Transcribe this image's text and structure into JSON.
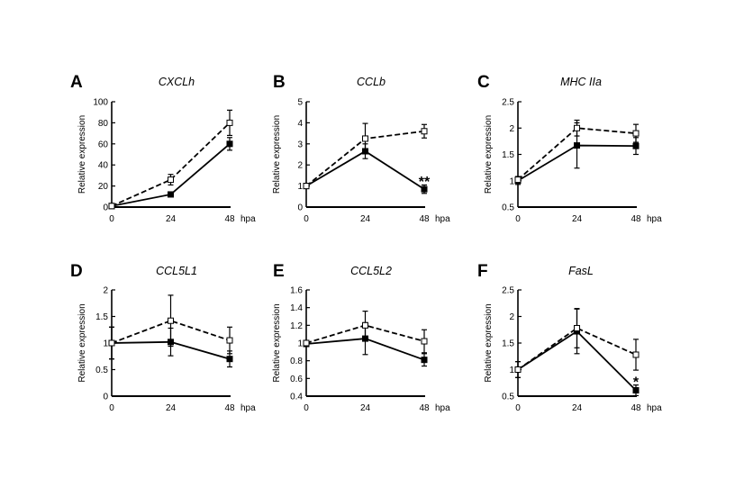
{
  "figure": {
    "background": "#ffffff",
    "ink_color": "#000000"
  },
  "chart_data": [
    {
      "type": "line",
      "panel": "A",
      "title": "CXCLh",
      "xlabel": "hpa",
      "ylabel": "Relative expression",
      "x": [
        0,
        24,
        48
      ],
      "x_tick_labels": [
        "0",
        "24",
        "48"
      ],
      "ylim": [
        0,
        100
      ],
      "y_ticks": [
        0,
        20,
        40,
        60,
        80,
        100
      ],
      "y_tick_labels": [
        "0",
        "20",
        "40",
        "60",
        "80",
        "100"
      ],
      "grid": false,
      "series": [
        {
          "name": "open squares (dashed)",
          "style": "dashed",
          "marker": "open-square",
          "values": [
            1,
            26,
            80
          ],
          "errors": [
            0.5,
            5,
            12
          ]
        },
        {
          "name": "filled squares (solid)",
          "style": "solid",
          "marker": "filled-square",
          "values": [
            1,
            12,
            60
          ],
          "errors": [
            0.5,
            2,
            6
          ]
        }
      ],
      "annotations": []
    },
    {
      "type": "line",
      "panel": "B",
      "title": "CCLb",
      "xlabel": "hpa",
      "ylabel": "Relative expression",
      "x": [
        0,
        24,
        48
      ],
      "x_tick_labels": [
        "0",
        "24",
        "48"
      ],
      "ylim": [
        0,
        5
      ],
      "y_ticks": [
        0,
        1,
        2,
        3,
        4,
        5
      ],
      "y_tick_labels": [
        "0",
        "1",
        "2",
        "3",
        "4",
        "5"
      ],
      "grid": false,
      "series": [
        {
          "name": "open squares (dashed)",
          "style": "dashed",
          "marker": "open-square",
          "values": [
            1,
            3.25,
            3.6
          ],
          "errors": [
            0.08,
            0.72,
            0.32
          ]
        },
        {
          "name": "filled squares (solid)",
          "style": "solid",
          "marker": "filled-square",
          "values": [
            1,
            2.65,
            0.85
          ],
          "errors": [
            0.1,
            0.35,
            0.2
          ]
        }
      ],
      "annotations": [
        {
          "text": "**",
          "x": 48,
          "y": 1.25
        }
      ]
    },
    {
      "type": "line",
      "panel": "C",
      "title": "MHC IIa",
      "xlabel": "hpa",
      "ylabel": "Relative expression",
      "x": [
        0,
        24,
        48
      ],
      "x_tick_labels": [
        "0",
        "24",
        "48"
      ],
      "ylim": [
        0.5,
        2.5
      ],
      "y_ticks": [
        0.5,
        1,
        1.5,
        2,
        2.5
      ],
      "y_tick_labels": [
        "0.5",
        "1",
        "1.5",
        "2",
        "2.5"
      ],
      "grid": false,
      "series": [
        {
          "name": "open squares (dashed)",
          "style": "dashed",
          "marker": "open-square",
          "values": [
            1.02,
            2.0,
            1.9
          ],
          "errors": [
            0.06,
            0.15,
            0.17
          ]
        },
        {
          "name": "filled squares (solid)",
          "style": "solid",
          "marker": "filled-square",
          "values": [
            1.0,
            1.67,
            1.66
          ],
          "errors": [
            0.07,
            0.43,
            0.16
          ]
        }
      ],
      "annotations": []
    },
    {
      "type": "line",
      "panel": "D",
      "title": "CCL5L1",
      "xlabel": "hpa",
      "ylabel": "Relative expression",
      "x": [
        0,
        24,
        48
      ],
      "x_tick_labels": [
        "0",
        "24",
        "48"
      ],
      "ylim": [
        0,
        2
      ],
      "y_ticks": [
        0,
        0.5,
        1,
        1.5,
        2
      ],
      "y_tick_labels": [
        "0",
        "0.5",
        "1",
        "1.5",
        "2"
      ],
      "grid": false,
      "series": [
        {
          "name": "open squares (dashed)",
          "style": "dashed",
          "marker": "open-square",
          "values": [
            1.0,
            1.42,
            1.05
          ],
          "errors": [
            0.3,
            0.48,
            0.25
          ]
        },
        {
          "name": "filled squares (solid)",
          "style": "solid",
          "marker": "filled-square",
          "values": [
            1.0,
            1.02,
            0.7
          ],
          "errors": [
            0.3,
            0.26,
            0.15
          ]
        }
      ],
      "annotations": []
    },
    {
      "type": "line",
      "panel": "E",
      "title": "CCL5L2",
      "xlabel": "hpa",
      "ylabel": "Relative expression",
      "x": [
        0,
        24,
        48
      ],
      "x_tick_labels": [
        "0",
        "24",
        "48"
      ],
      "ylim": [
        0.4,
        1.6
      ],
      "y_ticks": [
        0.4,
        0.6,
        0.8,
        1.0,
        1.2,
        1.4,
        1.6
      ],
      "y_tick_labels": [
        "0.4",
        "0.6",
        "0.8",
        "1",
        "1.2",
        "1.4",
        "1.6"
      ],
      "grid": false,
      "series": [
        {
          "name": "open squares (dashed)",
          "style": "dashed",
          "marker": "open-square",
          "values": [
            1.0,
            1.2,
            1.02
          ],
          "errors": [
            0.03,
            0.16,
            0.13
          ]
        },
        {
          "name": "filled squares (solid)",
          "style": "solid",
          "marker": "filled-square",
          "values": [
            0.99,
            1.05,
            0.81
          ],
          "errors": [
            0.03,
            0.18,
            0.07
          ]
        }
      ],
      "annotations": []
    },
    {
      "type": "line",
      "panel": "F",
      "title": "FasL",
      "xlabel": "hpa",
      "ylabel": "Relative expression",
      "x": [
        0,
        24,
        48
      ],
      "x_tick_labels": [
        "0",
        "24",
        "48"
      ],
      "ylim": [
        0.5,
        2.5
      ],
      "y_ticks": [
        0.5,
        1,
        1.5,
        2,
        2.5
      ],
      "y_tick_labels": [
        "0.5",
        "1",
        "1.5",
        "2",
        "2.5"
      ],
      "grid": false,
      "series": [
        {
          "name": "open squares (dashed)",
          "style": "dashed",
          "marker": "open-square",
          "values": [
            1.0,
            1.78,
            1.28
          ],
          "errors": [
            0.15,
            0.37,
            0.29
          ]
        },
        {
          "name": "filled squares (solid)",
          "style": "solid",
          "marker": "filled-square",
          "values": [
            1.0,
            1.72,
            0.61
          ],
          "errors": [
            0.15,
            0.42,
            0.1
          ]
        }
      ],
      "annotations": [
        {
          "text": "*",
          "x": 48,
          "y": 0.78
        }
      ]
    }
  ]
}
